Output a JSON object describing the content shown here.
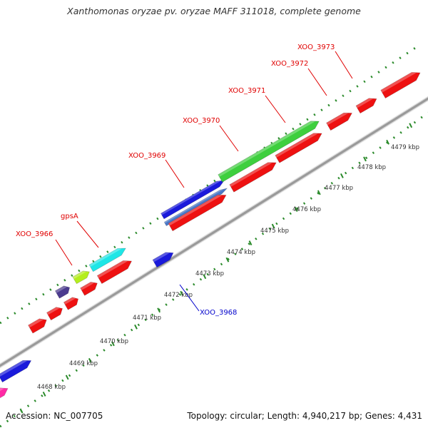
{
  "title": "Xanthomonas oryzae pv. oryzae MAFF 311018, complete genome",
  "footer": {
    "accession": "Accession: NC_007705",
    "stats": "Topology: circular; Length: 4,940,217 bp; Genes: 4,431"
  },
  "colors": {
    "backbone": "#9a9a9a",
    "scale_dots": "#2a8a2a",
    "label_red": "#e00000",
    "label_blue": "#0000cc"
  },
  "kbp_ticks": [
    "4468 kbp",
    "4469 kbp",
    "4470 kbp",
    "4471 kbp",
    "4472 kbp",
    "4473 kbp",
    "4474 kbp",
    "4475 kbp",
    "4476 kbp",
    "4477 kbp",
    "4478 kbp",
    "4479 kbp"
  ],
  "gene_labels": [
    {
      "id": "xoo3966",
      "text": "XOO_3966",
      "color": "red"
    },
    {
      "id": "gpsa",
      "text": "gpsA",
      "color": "red"
    },
    {
      "id": "xoo3969",
      "text": "XOO_3969",
      "color": "red"
    },
    {
      "id": "xoo3970",
      "text": "XOO_3970",
      "color": "red"
    },
    {
      "id": "xoo3971",
      "text": "XOO_3971",
      "color": "red"
    },
    {
      "id": "xoo3972",
      "text": "XOO_3972",
      "color": "red"
    },
    {
      "id": "xoo3973",
      "text": "XOO_3973",
      "color": "red"
    },
    {
      "id": "xoo3968",
      "text": "XOO_3968",
      "color": "blue"
    }
  ],
  "genes": [
    {
      "name": "gene-bottom-blue",
      "fill": "#1a1adb"
    },
    {
      "name": "gene-bottom-magenta",
      "fill": "#ff2aa5"
    },
    {
      "name": "gene-red-a",
      "fill": "#ee1111"
    },
    {
      "name": "gene-red-b",
      "fill": "#ee1111"
    },
    {
      "name": "gene-red-c",
      "fill": "#ee1111"
    },
    {
      "name": "gene-red-d",
      "fill": "#ee1111"
    },
    {
      "name": "gene-red-e",
      "fill": "#ee1111"
    },
    {
      "name": "gene-xoo3966",
      "fill": "#4b3b8f"
    },
    {
      "name": "gene-gpsa",
      "fill": "#b4ee1e"
    },
    {
      "name": "gene-cyan",
      "fill": "#1ee6e6"
    },
    {
      "name": "gene-xoo3968",
      "fill": "#1a1adb"
    },
    {
      "name": "gene-xoo3969-blue",
      "fill": "#1a1adb"
    },
    {
      "name": "gene-xoo3969-steel",
      "fill": "#4a78c8"
    },
    {
      "name": "gene-red-f",
      "fill": "#ee1111"
    },
    {
      "name": "gene-red-g",
      "fill": "#ee1111"
    },
    {
      "name": "gene-xoo3971-green",
      "fill": "#3ecf3e"
    },
    {
      "name": "gene-red-h",
      "fill": "#ee1111"
    },
    {
      "name": "gene-red-i",
      "fill": "#ee1111"
    },
    {
      "name": "gene-red-j",
      "fill": "#ee1111"
    },
    {
      "name": "gene-red-k",
      "fill": "#ee1111"
    }
  ]
}
